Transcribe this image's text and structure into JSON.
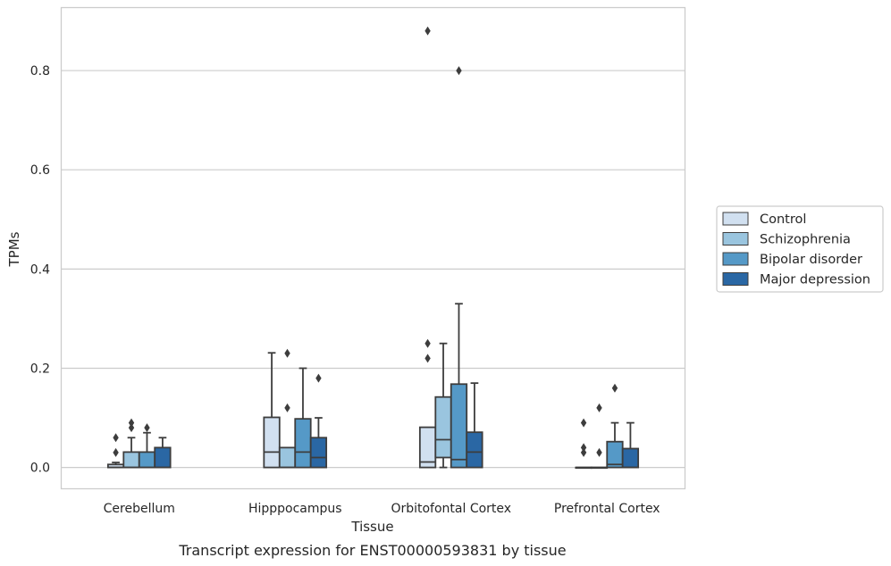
{
  "caption": "Transcript expression for ENST00000593831 by tissue",
  "chart_data": {
    "type": "box",
    "xlabel": "Tissue",
    "ylabel": "TPMs",
    "ylim": [
      -0.043,
      0.927
    ],
    "yticks": [
      "0.0",
      "0.2",
      "0.4",
      "0.6",
      "0.8"
    ],
    "ytick_values": [
      0.0,
      0.2,
      0.4,
      0.6,
      0.8
    ],
    "grid": "horizontal",
    "legend_position": "right",
    "categories": [
      "Cerebellum",
      "Hipppocampus",
      "Orbitofontal Cortex",
      "Prefrontal Cortex"
    ],
    "series": [
      {
        "name": "Control",
        "color": "#d1e0f0",
        "boxes": [
          {
            "whislo": 0.0,
            "q1": 0.0,
            "med": 0.0,
            "q3": 0.006,
            "whishi": 0.01,
            "fliers": [
              0.03,
              0.06
            ]
          },
          {
            "whislo": 0.0,
            "q1": 0.0,
            "med": 0.031,
            "q3": 0.101,
            "whishi": 0.231,
            "fliers": []
          },
          {
            "whislo": 0.0,
            "q1": 0.0,
            "med": 0.011,
            "q3": 0.081,
            "whishi": 0.081,
            "fliers": [
              0.22,
              0.25,
              0.88
            ]
          },
          {
            "whislo": 0.0,
            "q1": 0.0,
            "med": 0.0,
            "q3": 0.0,
            "whishi": 0.0,
            "fliers": [
              0.03,
              0.04,
              0.09
            ]
          }
        ]
      },
      {
        "name": "Schizophrenia",
        "color": "#9ac5df",
        "boxes": [
          {
            "whislo": 0.0,
            "q1": 0.0,
            "med": 0.0,
            "q3": 0.031,
            "whishi": 0.06,
            "fliers": [
              0.08,
              0.09
            ]
          },
          {
            "whislo": 0.0,
            "q1": 0.0,
            "med": 0.0,
            "q3": 0.04,
            "whishi": 0.04,
            "fliers": [
              0.12,
              0.23
            ]
          },
          {
            "whislo": 0.0,
            "q1": 0.02,
            "med": 0.056,
            "q3": 0.142,
            "whishi": 0.25,
            "fliers": []
          },
          {
            "whislo": 0.0,
            "q1": 0.0,
            "med": 0.0,
            "q3": 0.0,
            "whishi": 0.0,
            "fliers": [
              0.03,
              0.12
            ]
          }
        ]
      },
      {
        "name": "Bipolar disorder",
        "color": "#5599c7",
        "boxes": [
          {
            "whislo": 0.0,
            "q1": 0.0,
            "med": 0.0,
            "q3": 0.031,
            "whishi": 0.07,
            "fliers": [
              0.08
            ]
          },
          {
            "whislo": 0.0,
            "q1": 0.0,
            "med": 0.031,
            "q3": 0.098,
            "whishi": 0.2,
            "fliers": []
          },
          {
            "whislo": 0.0,
            "q1": 0.0,
            "med": 0.016,
            "q3": 0.168,
            "whishi": 0.33,
            "fliers": [
              0.8
            ]
          },
          {
            "whislo": 0.0,
            "q1": 0.0,
            "med": 0.006,
            "q3": 0.052,
            "whishi": 0.09,
            "fliers": [
              0.16
            ]
          }
        ]
      },
      {
        "name": "Major depression",
        "color": "#2a67a4",
        "boxes": [
          {
            "whislo": 0.0,
            "q1": 0.0,
            "med": 0.0,
            "q3": 0.04,
            "whishi": 0.06,
            "fliers": []
          },
          {
            "whislo": 0.0,
            "q1": 0.0,
            "med": 0.02,
            "q3": 0.06,
            "whishi": 0.1,
            "fliers": [
              0.18
            ]
          },
          {
            "whislo": 0.0,
            "q1": 0.0,
            "med": 0.031,
            "q3": 0.071,
            "whishi": 0.17,
            "fliers": []
          },
          {
            "whislo": 0.0,
            "q1": 0.0,
            "med": 0.0,
            "q3": 0.038,
            "whishi": 0.09,
            "fliers": []
          }
        ]
      }
    ]
  }
}
